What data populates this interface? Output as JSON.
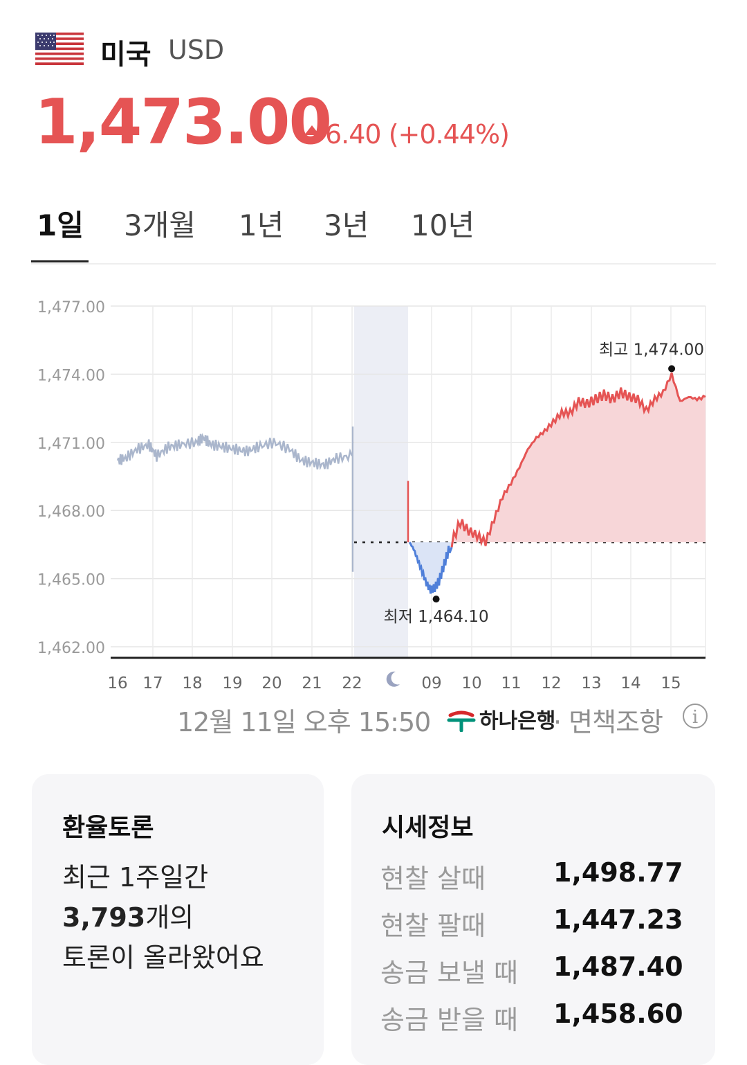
{
  "header": {
    "flag_icon": "us-flag-icon",
    "country": "미국",
    "currency_code": "USD",
    "price": "1,473.00",
    "change": "6.40 (+0.44%)",
    "change_direction": "up",
    "up_color": "#e55454",
    "down_color": "#4f7fd9"
  },
  "tabs": [
    {
      "label": "1일",
      "active": true
    },
    {
      "label": "3개월",
      "active": false
    },
    {
      "label": "1년",
      "active": false
    },
    {
      "label": "3년",
      "active": false
    },
    {
      "label": "10년",
      "active": false
    }
  ],
  "chart_data": {
    "type": "line",
    "y_ticks": [
      "1,477.00",
      "1,474.00",
      "1,471.00",
      "1,468.00",
      "1,465.00",
      "1,462.00"
    ],
    "ylim": [
      1462,
      1477
    ],
    "x_ticks": [
      "16",
      "17",
      "18",
      "19",
      "20",
      "21",
      "22",
      "moon-icon",
      "09",
      "10",
      "11",
      "12",
      "13",
      "14",
      "15"
    ],
    "baseline": 1466.6,
    "grid": true,
    "previous_session": {
      "color": "#aab6cc",
      "x": [
        16.0,
        16.2,
        16.5,
        16.8,
        17.0,
        17.3,
        17.6,
        18.0,
        18.2,
        18.4,
        18.7,
        19.0,
        19.3,
        19.6,
        20.0,
        20.4,
        20.7,
        21.0,
        21.3,
        21.6,
        22.0
      ],
      "y": [
        1470.2,
        1470.3,
        1470.7,
        1470.9,
        1470.4,
        1470.8,
        1470.9,
        1471.0,
        1471.2,
        1470.9,
        1470.8,
        1470.7,
        1470.6,
        1470.8,
        1471.0,
        1470.7,
        1470.2,
        1470.1,
        1470.0,
        1470.3,
        1470.4
      ]
    },
    "current_session": {
      "x": [
        9.0,
        9.1,
        9.2,
        9.3,
        9.4,
        9.5,
        9.6,
        9.7,
        9.8,
        9.9,
        10.0,
        10.2,
        10.4,
        10.6,
        10.8,
        11.0,
        11.2,
        11.4,
        11.6,
        11.8,
        12.0,
        12.2,
        12.4,
        12.6,
        12.8,
        13.0,
        13.2,
        13.4,
        13.6,
        13.8,
        14.0,
        14.2,
        14.4,
        14.6,
        14.8,
        15.0,
        15.2,
        15.4,
        15.6,
        15.8,
        16.0
      ],
      "y": [
        1466.6,
        1466.3,
        1465.8,
        1465.3,
        1464.8,
        1464.5,
        1464.6,
        1464.9,
        1465.5,
        1466.1,
        1466.6,
        1467.5,
        1467.1,
        1466.9,
        1466.6,
        1467.6,
        1468.6,
        1469.2,
        1469.9,
        1470.7,
        1471.2,
        1471.5,
        1471.9,
        1472.3,
        1472.3,
        1472.8,
        1472.7,
        1472.9,
        1473.1,
        1472.9,
        1473.2,
        1473.0,
        1472.9,
        1472.4,
        1472.9,
        1473.2,
        1474.0,
        1472.8,
        1473.0,
        1472.9,
        1473.0
      ]
    },
    "annotations": [
      {
        "label": "최고",
        "value": "1,474.00"
      },
      {
        "label": "최저",
        "value": "1,464.10"
      }
    ]
  },
  "footer": {
    "timestamp": "12월 11일 오후 15:50",
    "bank": "하나은행",
    "disclaimer": "· 면책조항",
    "info_icon": "info-icon"
  },
  "forum": {
    "title": "환율토론",
    "line1": "최근 1주일간",
    "count": "3,793",
    "count_suffix": "개의",
    "line3": "토론이 올라왔어요"
  },
  "market_info": {
    "title": "시세정보",
    "rows": [
      {
        "label": "현찰 살때",
        "value": "1,498.77"
      },
      {
        "label": "현찰 팔때",
        "value": "1,447.23"
      },
      {
        "label": "송금 보낼 때",
        "value": "1,487.40"
      },
      {
        "label": "송금 받을 때",
        "value": "1,458.60"
      }
    ]
  }
}
